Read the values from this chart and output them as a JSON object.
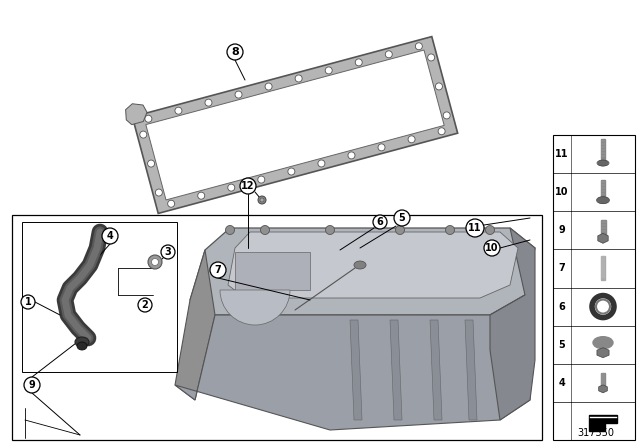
{
  "bg_color": "#ffffff",
  "part_number": "317350",
  "gasket_color": "#b8b8b8",
  "gasket_edge": "#555555",
  "pan_color": "#a0a8b0",
  "pan_edge": "#505050",
  "panel_bg": "#ffffff",
  "panel_edge": "#000000",
  "callout_bg": "#ffffff",
  "callout_edge": "#000000",
  "right_panel_items": [
    {
      "num": "11",
      "type": "bolt_long"
    },
    {
      "num": "10",
      "type": "bolt_flange"
    },
    {
      "num": "9",
      "type": "bolt_hex"
    },
    {
      "num": "7",
      "type": "stud"
    },
    {
      "num": "6",
      "type": "oring"
    },
    {
      "num": "5",
      "type": "plug"
    },
    {
      "num": "4",
      "type": "bolt_sm"
    },
    {
      "num": "",
      "type": "gasket_profile"
    }
  ]
}
